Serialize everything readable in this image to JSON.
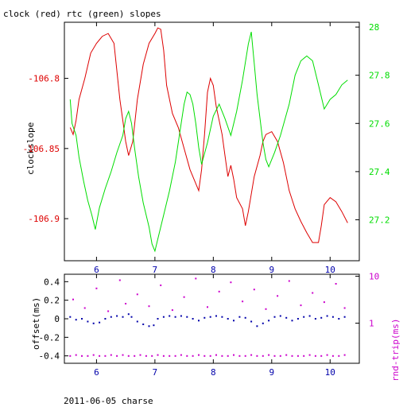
{
  "figure": {
    "title": "clock (red) rtc (green) slopes",
    "footer": "2011-06-05 charse"
  },
  "colors": {
    "clock": "#dd0000",
    "rtc": "#00dd00",
    "offset": "#0000aa",
    "rtrip": "#cc00cc",
    "axis": "#000000"
  },
  "chart_data": [
    {
      "type": "line",
      "title": "clock (red) rtc (green) slopes",
      "xlim": [
        5.45,
        10.5
      ],
      "x_ticks": [
        6,
        7,
        8,
        9,
        10
      ],
      "ylabel_left": "clockslope",
      "ylim_left": [
        -106.93,
        -106.76
      ],
      "y_ticks_left": [
        -106.8,
        -106.85,
        -106.9
      ],
      "ylim_right": [
        27.03,
        28.02
      ],
      "y_ticks_right": [
        27.2,
        27.4,
        27.6,
        27.8,
        28
      ],
      "grid": false,
      "series": [
        {
          "axis": "left",
          "color": "#dd0000",
          "points": [
            [
              5.55,
              -106.835
            ],
            [
              5.6,
              -106.84
            ],
            [
              5.65,
              -106.83
            ],
            [
              5.7,
              -106.815
            ],
            [
              5.8,
              -106.8
            ],
            [
              5.9,
              -106.782
            ],
            [
              6.0,
              -106.775
            ],
            [
              6.1,
              -106.77
            ],
            [
              6.2,
              -106.768
            ],
            [
              6.3,
              -106.775
            ],
            [
              6.35,
              -106.795
            ],
            [
              6.4,
              -106.815
            ],
            [
              6.45,
              -106.83
            ],
            [
              6.5,
              -106.845
            ],
            [
              6.55,
              -106.855
            ],
            [
              6.62,
              -106.845
            ],
            [
              6.7,
              -106.815
            ],
            [
              6.8,
              -106.79
            ],
            [
              6.9,
              -106.775
            ],
            [
              7.0,
              -106.768
            ],
            [
              7.05,
              -106.764
            ],
            [
              7.1,
              -106.765
            ],
            [
              7.15,
              -106.78
            ],
            [
              7.2,
              -106.805
            ],
            [
              7.3,
              -106.825
            ],
            [
              7.4,
              -106.835
            ],
            [
              7.5,
              -106.85
            ],
            [
              7.6,
              -106.865
            ],
            [
              7.7,
              -106.875
            ],
            [
              7.75,
              -106.88
            ],
            [
              7.8,
              -106.865
            ],
            [
              7.85,
              -106.84
            ],
            [
              7.9,
              -106.81
            ],
            [
              7.95,
              -106.8
            ],
            [
              8.0,
              -106.805
            ],
            [
              8.05,
              -106.82
            ],
            [
              8.15,
              -106.84
            ],
            [
              8.2,
              -106.855
            ],
            [
              8.25,
              -106.87
            ],
            [
              8.3,
              -106.862
            ],
            [
              8.35,
              -106.872
            ],
            [
              8.4,
              -106.885
            ],
            [
              8.5,
              -106.893
            ],
            [
              8.55,
              -106.905
            ],
            [
              8.6,
              -106.895
            ],
            [
              8.7,
              -106.87
            ],
            [
              8.8,
              -106.855
            ],
            [
              8.85,
              -106.845
            ],
            [
              8.9,
              -106.84
            ],
            [
              9.0,
              -106.838
            ],
            [
              9.1,
              -106.845
            ],
            [
              9.2,
              -106.86
            ],
            [
              9.3,
              -106.88
            ],
            [
              9.4,
              -106.893
            ],
            [
              9.5,
              -106.902
            ],
            [
              9.6,
              -106.91
            ],
            [
              9.7,
              -106.917
            ],
            [
              9.8,
              -106.917
            ],
            [
              9.85,
              -106.905
            ],
            [
              9.9,
              -106.89
            ],
            [
              10.0,
              -106.885
            ],
            [
              10.1,
              -106.888
            ],
            [
              10.2,
              -106.895
            ],
            [
              10.3,
              -106.903
            ]
          ]
        },
        {
          "axis": "right",
          "color": "#00dd00",
          "points": [
            [
              5.55,
              27.7
            ],
            [
              5.58,
              27.6
            ],
            [
              5.65,
              27.55
            ],
            [
              5.7,
              27.46
            ],
            [
              5.78,
              27.36
            ],
            [
              5.85,
              27.28
            ],
            [
              5.92,
              27.22
            ],
            [
              5.98,
              27.16
            ],
            [
              6.05,
              27.25
            ],
            [
              6.15,
              27.33
            ],
            [
              6.25,
              27.4
            ],
            [
              6.35,
              27.48
            ],
            [
              6.45,
              27.55
            ],
            [
              6.5,
              27.62
            ],
            [
              6.55,
              27.65
            ],
            [
              6.6,
              27.6
            ],
            [
              6.65,
              27.5
            ],
            [
              6.72,
              27.38
            ],
            [
              6.8,
              27.27
            ],
            [
              6.9,
              27.17
            ],
            [
              6.95,
              27.1
            ],
            [
              7.0,
              27.07
            ],
            [
              7.05,
              27.12
            ],
            [
              7.15,
              27.22
            ],
            [
              7.25,
              27.32
            ],
            [
              7.35,
              27.44
            ],
            [
              7.45,
              27.6
            ],
            [
              7.5,
              27.68
            ],
            [
              7.55,
              27.73
            ],
            [
              7.6,
              27.72
            ],
            [
              7.65,
              27.68
            ],
            [
              7.7,
              27.6
            ],
            [
              7.75,
              27.5
            ],
            [
              7.8,
              27.43
            ],
            [
              7.9,
              27.52
            ],
            [
              8.0,
              27.63
            ],
            [
              8.1,
              27.68
            ],
            [
              8.2,
              27.62
            ],
            [
              8.3,
              27.55
            ],
            [
              8.4,
              27.65
            ],
            [
              8.5,
              27.78
            ],
            [
              8.6,
              27.93
            ],
            [
              8.65,
              27.98
            ],
            [
              8.7,
              27.85
            ],
            [
              8.75,
              27.72
            ],
            [
              8.8,
              27.62
            ],
            [
              8.85,
              27.52
            ],
            [
              8.9,
              27.45
            ],
            [
              8.95,
              27.42
            ],
            [
              9.05,
              27.48
            ],
            [
              9.15,
              27.55
            ],
            [
              9.3,
              27.68
            ],
            [
              9.4,
              27.8
            ],
            [
              9.5,
              27.86
            ],
            [
              9.6,
              27.88
            ],
            [
              9.7,
              27.86
            ],
            [
              9.8,
              27.76
            ],
            [
              9.9,
              27.66
            ],
            [
              10.0,
              27.7
            ],
            [
              10.1,
              27.72
            ],
            [
              10.2,
              27.76
            ],
            [
              10.3,
              27.78
            ]
          ]
        }
      ]
    },
    {
      "type": "scatter",
      "xlim": [
        5.45,
        10.5
      ],
      "x_ticks": [
        6,
        7,
        8,
        9,
        10
      ],
      "ylabel_left": "offset(ms)",
      "ylim_left": [
        -0.48,
        0.48
      ],
      "y_ticks_left": [
        0.4,
        0.2,
        0,
        -0.2,
        -0.4
      ],
      "ylabel_right": "rnd-trip(ms)",
      "right_scale": "log",
      "ylim_right": [
        0.14,
        11
      ],
      "y_ticks_right": [
        10,
        1
      ],
      "grid": false,
      "series": [
        {
          "axis": "left",
          "color": "#0000aa",
          "points": [
            [
              5.55,
              0.02
            ],
            [
              5.65,
              -0.01
            ],
            [
              5.75,
              0.0
            ],
            [
              5.85,
              -0.03
            ],
            [
              5.95,
              -0.05
            ],
            [
              6.05,
              -0.04
            ],
            [
              6.15,
              0.0
            ],
            [
              6.25,
              0.02
            ],
            [
              6.35,
              0.03
            ],
            [
              6.45,
              0.02
            ],
            [
              6.55,
              0.05
            ],
            [
              6.6,
              0.02
            ],
            [
              6.7,
              -0.03
            ],
            [
              6.8,
              -0.06
            ],
            [
              6.9,
              -0.08
            ],
            [
              6.98,
              -0.07
            ],
            [
              7.05,
              0.0
            ],
            [
              7.15,
              0.02
            ],
            [
              7.25,
              0.03
            ],
            [
              7.35,
              0.02
            ],
            [
              7.45,
              0.03
            ],
            [
              7.55,
              0.02
            ],
            [
              7.65,
              0.0
            ],
            [
              7.75,
              -0.02
            ],
            [
              7.85,
              0.01
            ],
            [
              7.95,
              0.02
            ],
            [
              8.05,
              0.03
            ],
            [
              8.15,
              0.02
            ],
            [
              8.25,
              0.0
            ],
            [
              8.35,
              -0.02
            ],
            [
              8.45,
              0.02
            ],
            [
              8.55,
              0.01
            ],
            [
              8.65,
              -0.03
            ],
            [
              8.75,
              -0.08
            ],
            [
              8.85,
              -0.05
            ],
            [
              8.95,
              -0.02
            ],
            [
              9.05,
              0.02
            ],
            [
              9.15,
              0.03
            ],
            [
              9.25,
              0.01
            ],
            [
              9.35,
              -0.02
            ],
            [
              9.45,
              0.0
            ],
            [
              9.55,
              0.02
            ],
            [
              9.65,
              0.03
            ],
            [
              9.75,
              0.0
            ],
            [
              9.85,
              0.01
            ],
            [
              9.95,
              0.03
            ],
            [
              10.05,
              0.02
            ],
            [
              10.15,
              0.0
            ],
            [
              10.25,
              0.02
            ]
          ]
        },
        {
          "axis": "right",
          "color": "#cc00cc",
          "points": [
            [
              5.55,
              0.2
            ],
            [
              5.65,
              0.21
            ],
            [
              5.75,
              0.2
            ],
            [
              5.85,
              0.2
            ],
            [
              5.95,
              0.21
            ],
            [
              6.05,
              0.2
            ],
            [
              6.15,
              0.2
            ],
            [
              6.25,
              0.21
            ],
            [
              6.35,
              0.2
            ],
            [
              6.45,
              0.21
            ],
            [
              6.55,
              0.2
            ],
            [
              6.65,
              0.2
            ],
            [
              6.75,
              0.21
            ],
            [
              6.85,
              0.2
            ],
            [
              6.95,
              0.2
            ],
            [
              7.05,
              0.21
            ],
            [
              7.15,
              0.2
            ],
            [
              7.25,
              0.2
            ],
            [
              7.35,
              0.2
            ],
            [
              7.45,
              0.21
            ],
            [
              7.55,
              0.2
            ],
            [
              7.65,
              0.2
            ],
            [
              7.75,
              0.21
            ],
            [
              7.85,
              0.2
            ],
            [
              7.95,
              0.2
            ],
            [
              8.05,
              0.21
            ],
            [
              8.15,
              0.2
            ],
            [
              8.25,
              0.2
            ],
            [
              8.35,
              0.21
            ],
            [
              8.45,
              0.2
            ],
            [
              8.55,
              0.2
            ],
            [
              8.65,
              0.21
            ],
            [
              8.75,
              0.2
            ],
            [
              8.85,
              0.2
            ],
            [
              8.95,
              0.21
            ],
            [
              9.05,
              0.2
            ],
            [
              9.15,
              0.2
            ],
            [
              9.25,
              0.21
            ],
            [
              9.35,
              0.2
            ],
            [
              9.45,
              0.2
            ],
            [
              9.55,
              0.2
            ],
            [
              9.65,
              0.21
            ],
            [
              9.75,
              0.2
            ],
            [
              9.85,
              0.2
            ],
            [
              9.95,
              0.21
            ],
            [
              10.05,
              0.2
            ],
            [
              10.15,
              0.2
            ],
            [
              10.25,
              0.21
            ],
            [
              5.6,
              3.2
            ],
            [
              5.8,
              2.1
            ],
            [
              6.0,
              5.5
            ],
            [
              6.2,
              1.8
            ],
            [
              6.4,
              8.2
            ],
            [
              6.5,
              2.6
            ],
            [
              6.7,
              4.1
            ],
            [
              6.9,
              2.3
            ],
            [
              7.1,
              6.4
            ],
            [
              7.3,
              1.9
            ],
            [
              7.5,
              3.6
            ],
            [
              7.7,
              8.9
            ],
            [
              7.9,
              2.2
            ],
            [
              8.1,
              4.7
            ],
            [
              8.3,
              7.4
            ],
            [
              8.5,
              2.9
            ],
            [
              8.7,
              5.2
            ],
            [
              8.9,
              2.0
            ],
            [
              9.1,
              3.8
            ],
            [
              9.3,
              7.9
            ],
            [
              9.5,
              2.4
            ],
            [
              9.7,
              4.4
            ],
            [
              9.9,
              2.8
            ],
            [
              10.1,
              6.9
            ],
            [
              10.25,
              2.1
            ]
          ]
        }
      ]
    }
  ]
}
